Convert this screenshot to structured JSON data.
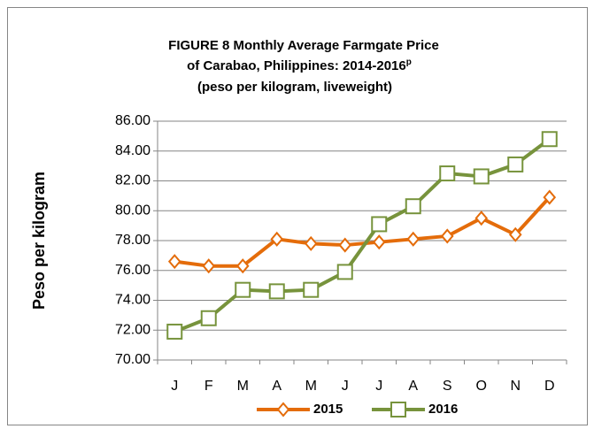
{
  "chart_data": {
    "type": "line",
    "title": [
      "FIGURE 8  Monthly Average Farmgate Price",
      "of Carabao, Philippines: 2014-2016",
      "(peso per kilogram, liveweight)"
    ],
    "title_superscript": "p",
    "ylabel": "Peso per kilogram",
    "categories": [
      "J",
      "F",
      "M",
      "A",
      "M",
      "J",
      "J",
      "A",
      "S",
      "O",
      "N",
      "D"
    ],
    "series": [
      {
        "name": "2015",
        "color": "#e46c0a",
        "marker": "diamond",
        "values": [
          76.6,
          76.3,
          76.3,
          78.1,
          77.8,
          77.7,
          77.9,
          78.1,
          78.3,
          79.5,
          78.4,
          80.9
        ]
      },
      {
        "name": "2016",
        "color": "#77933c",
        "marker": "square",
        "values": [
          71.9,
          72.8,
          74.7,
          74.6,
          74.7,
          75.9,
          79.1,
          80.3,
          82.5,
          82.3,
          83.1,
          84.8
        ]
      }
    ],
    "ylim": [
      70,
      86
    ],
    "yticks": [
      {
        "value": 70,
        "label": "70.00"
      },
      {
        "value": 72,
        "label": "72.00"
      },
      {
        "value": 74,
        "label": "74.00"
      },
      {
        "value": 76,
        "label": "76.00"
      },
      {
        "value": 78,
        "label": "78.00"
      },
      {
        "value": 80,
        "label": "80.00"
      },
      {
        "value": 82,
        "label": "82.00"
      },
      {
        "value": 84,
        "label": "84.00"
      },
      {
        "value": 86,
        "label": "86.00"
      }
    ],
    "grid": true,
    "legend": "bottom"
  }
}
